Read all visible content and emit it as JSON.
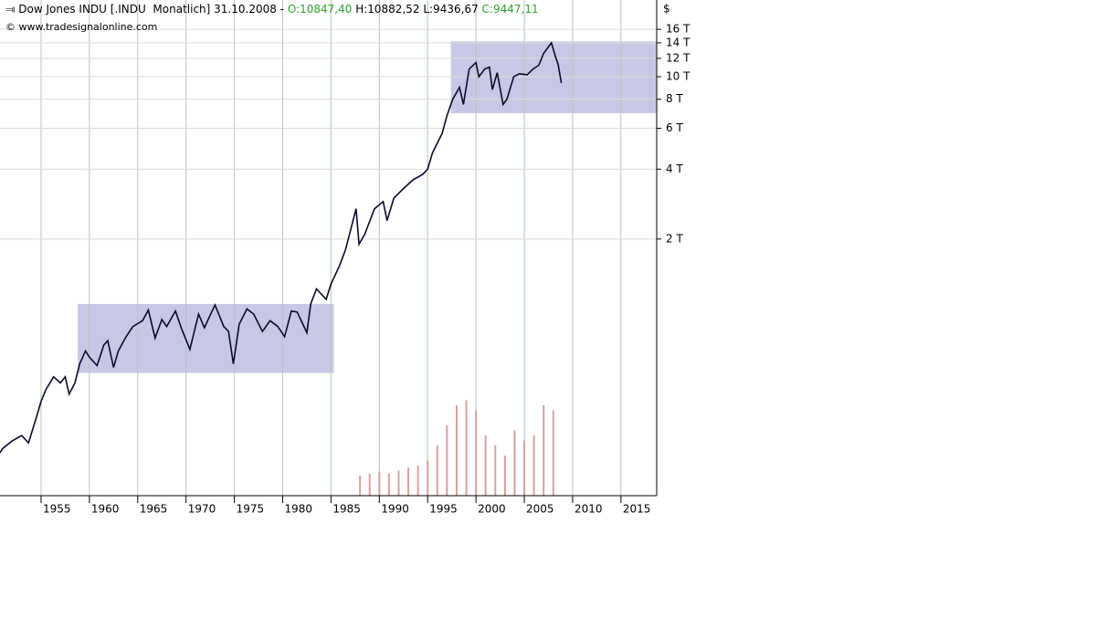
{
  "chart_data": {
    "type": "line",
    "title": "Dow Jones INDU [.INDU  Monatlich] 31.10.2008 - ",
    "quote": [
      "O:10847,40",
      "H:10882,52",
      "L:9436,67",
      "C:9447,11"
    ],
    "source": "© www.tradesignalonline.com",
    "y_unit": "$",
    "log_scale": true,
    "grid": true,
    "color": "#0a0a2a",
    "xlim": [
      1950.75,
      2018.7
    ],
    "xticks": [
      1955,
      1960,
      1965,
      1970,
      1975,
      1980,
      1985,
      1990,
      1995,
      2000,
      2005,
      2010,
      2015
    ],
    "ylim": [
      157,
      21400
    ],
    "yticks": [
      {
        "value": 2000,
        "label": "2 T"
      },
      {
        "value": 4000,
        "label": "4 T"
      },
      {
        "value": 6000,
        "label": "6 T"
      },
      {
        "value": 8000,
        "label": "8 T"
      },
      {
        "value": 10000,
        "label": "10 T"
      },
      {
        "value": 12000,
        "label": "12 T"
      },
      {
        "value": 14000,
        "label": "14 T"
      },
      {
        "value": 16000,
        "label": "16 T"
      }
    ],
    "x": [
      1950.75,
      1951.0,
      1952.0,
      1953.0,
      1953.7,
      1954.5,
      1955.0,
      1955.5,
      1956.3,
      1957.0,
      1957.5,
      1957.9,
      1958.5,
      1959.0,
      1959.6,
      1960.0,
      1960.8,
      1961.5,
      1961.9,
      1962.5,
      1963.0,
      1963.8,
      1964.5,
      1965.5,
      1966.1,
      1966.8,
      1967.5,
      1968.0,
      1968.9,
      1969.5,
      1970.4,
      1971.3,
      1971.9,
      1972.5,
      1973.0,
      1973.9,
      1974.4,
      1974.9,
      1975.5,
      1976.3,
      1977.0,
      1977.9,
      1978.7,
      1979.5,
      1980.2,
      1980.9,
      1981.5,
      1982.5,
      1982.9,
      1983.5,
      1984.5,
      1985.0,
      1985.9,
      1986.5,
      1987.6,
      1987.9,
      1988.5,
      1989.5,
      1990.4,
      1990.8,
      1991.5,
      1992.5,
      1993.5,
      1994.5,
      1995.0,
      1995.5,
      1996.5,
      1997.0,
      1997.6,
      1998.3,
      1998.7,
      1999.3,
      2000.0,
      2000.3,
      2000.9,
      2001.4,
      2001.7,
      2002.2,
      2002.8,
      2003.2,
      2003.9,
      2004.5,
      2005.3,
      2005.9,
      2006.5,
      2007.0,
      2007.8,
      2008.2,
      2008.5,
      2008.83
    ],
    "values": [
      240,
      250,
      270,
      285,
      265,
      340,
      400,
      450,
      510,
      480,
      510,
      430,
      480,
      580,
      660,
      620,
      570,
      700,
      730,
      560,
      660,
      760,
      840,
      890,
      990,
      750,
      900,
      840,
      980,
      830,
      670,
      950,
      830,
      940,
      1040,
      840,
      800,
      580,
      860,
      1000,
      950,
      800,
      890,
      840,
      760,
      980,
      970,
      790,
      1050,
      1220,
      1100,
      1280,
      1540,
      1800,
      2700,
      1900,
      2100,
      2700,
      2900,
      2400,
      3000,
      3300,
      3600,
      3800,
      4000,
      4700,
      5700,
      6800,
      8000,
      9000,
      7600,
      10800,
      11500,
      10000,
      10800,
      11000,
      8800,
      10400,
      7600,
      8000,
      10000,
      10300,
      10200,
      10800,
      11200,
      12600,
      14000,
      12300,
      11300,
      9400
    ],
    "ranges": [
      {
        "x": [
          1958.8,
          1985.3
        ],
        "y": [
          530,
          1050
        ]
      },
      {
        "x": [
          1997.4,
          2018.7
        ],
        "y": [
          6960,
          14200
        ]
      }
    ],
    "range_color": "#c8c8e6",
    "volume": {
      "color": "#d9a0a0",
      "y2lim": [
        0,
        100
      ],
      "x": [
        1988,
        1989,
        1990,
        1991,
        1992,
        1993,
        1994,
        1995,
        1996,
        1997,
        1998,
        1999,
        2000,
        2001,
        2002,
        2003,
        2004,
        2005,
        2006,
        2007,
        2008
      ],
      "values": [
        20,
        22,
        24,
        22,
        25,
        28,
        30,
        35,
        50,
        70,
        90,
        95,
        85,
        60,
        50,
        40,
        65,
        55,
        60,
        90,
        85
      ]
    }
  }
}
